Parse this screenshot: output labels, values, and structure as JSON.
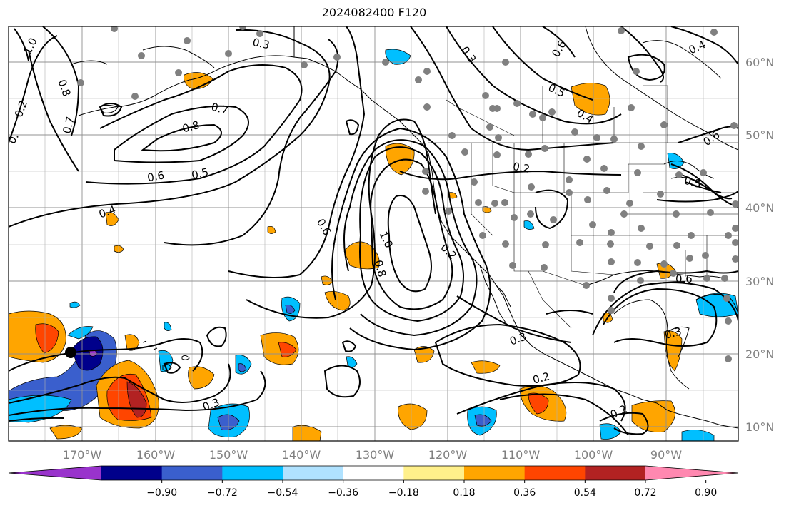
{
  "title": "2024082400 F120",
  "lon_labels": [
    "170°W",
    "160°W",
    "150°W",
    "140°W",
    "130°W",
    "120°W",
    "110°W",
    "100°W",
    "90°W"
  ],
  "lat_labels": [
    "60°N",
    "50°N",
    "40°N",
    "30°N",
    "20°N",
    "10°N"
  ],
  "contour_labels": [
    "1.0",
    "0.8",
    "0.2",
    "0.7",
    "0.",
    "0.3",
    "0.7",
    "0.8",
    "0.6",
    "0.5",
    "0.4",
    "0.6",
    "1.0",
    "0.8",
    "0.3",
    "0.5",
    "0.4",
    "0.6",
    "0.2",
    "0.6",
    "0.5",
    "0.2",
    "0.3",
    "0.3",
    "0.2",
    "0.2",
    "0.3",
    "0.4",
    "0.6"
  ],
  "colorbar": {
    "tick_labels": [
      "−0.90",
      "−0.72",
      "−0.54",
      "−0.36",
      "−0.18",
      "0.18",
      "0.36",
      "0.54",
      "0.72",
      "0.90"
    ],
    "colors": [
      "#9933cc",
      "#00008b",
      "#3a5fcd",
      "#00bfff",
      "#b0e2ff",
      "#ffffff",
      "#fff08b",
      "#ffa500",
      "#ff4500",
      "#b22222",
      "#ff88b0"
    ]
  }
}
